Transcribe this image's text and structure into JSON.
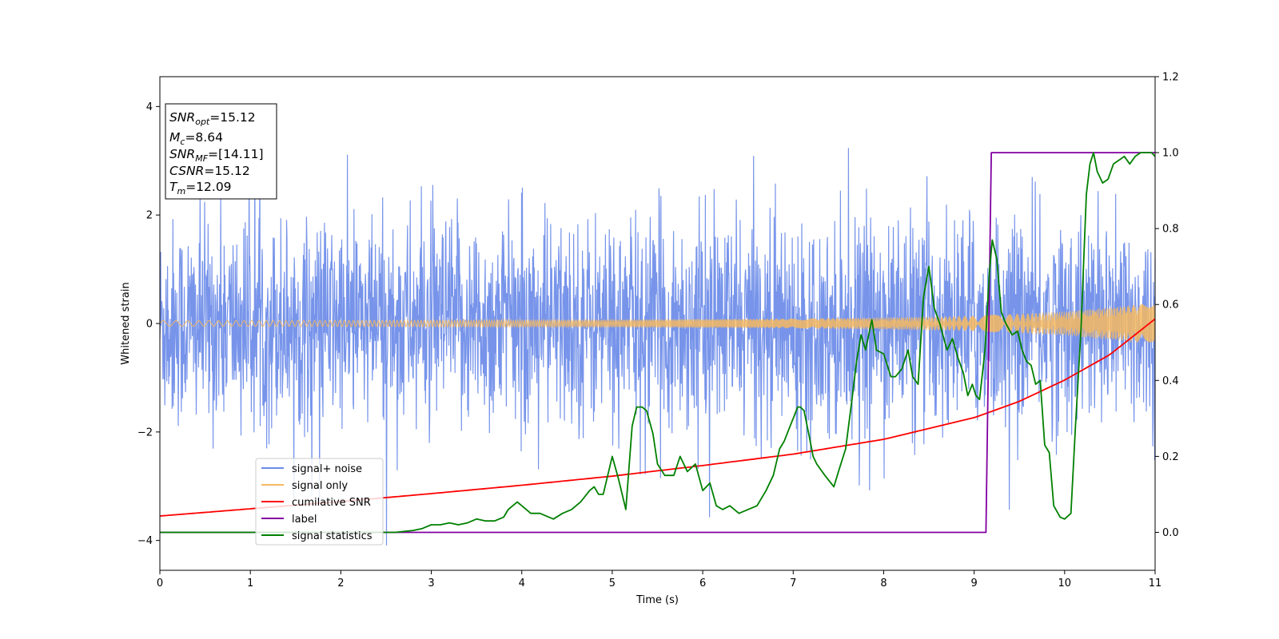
{
  "chart_data": {
    "type": "line",
    "xlabel": "Time (s)",
    "ylabel": "Whitened strain",
    "y2label": "",
    "xlim": [
      0,
      11
    ],
    "ylim": [
      -4.55,
      4.55
    ],
    "y2lim": [
      -0.1,
      1.2
    ],
    "xticks": [
      0,
      1,
      2,
      3,
      4,
      5,
      6,
      7,
      8,
      9,
      10,
      11
    ],
    "yticks": [
      -4,
      -2,
      0,
      2,
      4
    ],
    "y2ticks": [
      0.0,
      0.2,
      0.4,
      0.6,
      0.8,
      1.0,
      1.2
    ],
    "y2tick_labels": [
      "0.0",
      "0.2",
      "0.4",
      "0.6",
      "0.8",
      "1.0",
      "1.2"
    ],
    "grid": false,
    "legend_position": "lower-left",
    "colors": {
      "noise": "#6b8be8",
      "signal": "#f5b860",
      "snr": "#ff0000",
      "label": "#8000a0",
      "stats": "#008000"
    },
    "legend": [
      {
        "label": "signal+ noise",
        "color": "#6b8be8"
      },
      {
        "label": "signal only",
        "color": "#f5b860"
      },
      {
        "label": "cumilative SNR",
        "color": "#ff0000"
      },
      {
        "label": "label",
        "color": "#8000a0"
      },
      {
        "label": "signal statistics",
        "color": "#008000"
      }
    ],
    "info_box": [
      {
        "name": "SNR",
        "sub": "opt",
        "value": "=15.12"
      },
      {
        "name": "M",
        "sub": "c",
        "value": "=8.64"
      },
      {
        "name": "SNR",
        "sub": "MF",
        "value": "=[14.11]"
      },
      {
        "name": "CSNR",
        "sub": "",
        "value": "=15.12"
      },
      {
        "name": "T",
        "sub": "m",
        "value": "=12.09"
      }
    ],
    "series": [
      {
        "name": "signal+ noise",
        "axis": "left",
        "description_stats": {
          "std": 0.95,
          "max": 4.15,
          "min": -4.18
        }
      },
      {
        "name": "signal only",
        "axis": "left",
        "envelope": {
          "x": [
            0,
            3,
            5,
            7,
            8,
            9,
            10,
            11
          ],
          "amplitude": [
            0.05,
            0.06,
            0.07,
            0.09,
            0.11,
            0.14,
            0.22,
            0.38
          ]
        }
      },
      {
        "name": "cumilative SNR",
        "axis": "right",
        "x": [
          0,
          1,
          2,
          3,
          4,
          5,
          6,
          7,
          8,
          9,
          9.5,
          10,
          10.5,
          11
        ],
        "values": [
          0.043,
          0.062,
          0.081,
          0.102,
          0.124,
          0.148,
          0.176,
          0.206,
          0.245,
          0.302,
          0.345,
          0.401,
          0.468,
          0.562
        ]
      },
      {
        "name": "label",
        "axis": "right",
        "x": [
          0,
          9.13,
          9.19,
          11
        ],
        "values": [
          0,
          0,
          1,
          1
        ]
      },
      {
        "name": "signal statistics",
        "axis": "right",
        "x": [
          0,
          1,
          2,
          2.6,
          2.8,
          2.9,
          3.0,
          3.1,
          3.2,
          3.3,
          3.4,
          3.5,
          3.6,
          3.7,
          3.8,
          3.85,
          3.95,
          4.05,
          4.1,
          4.2,
          4.3,
          4.35,
          4.45,
          4.55,
          4.6,
          4.65,
          4.75,
          4.8,
          4.85,
          4.9,
          5.0,
          5.07,
          5.15,
          5.22,
          5.27,
          5.33,
          5.38,
          5.45,
          5.5,
          5.58,
          5.68,
          5.75,
          5.83,
          5.92,
          6.0,
          6.08,
          6.15,
          6.22,
          6.3,
          6.4,
          6.5,
          6.55,
          6.6,
          6.7,
          6.78,
          6.85,
          6.9,
          6.95,
          7.0,
          7.05,
          7.08,
          7.12,
          7.18,
          7.22,
          7.26,
          7.35,
          7.45,
          7.5,
          7.58,
          7.65,
          7.7,
          7.75,
          7.8,
          7.87,
          7.92,
          8.0,
          8.08,
          8.13,
          8.2,
          8.27,
          8.32,
          8.38,
          8.44,
          8.5,
          8.56,
          8.62,
          8.7,
          8.76,
          8.82,
          8.88,
          8.93,
          8.98,
          9.02,
          9.06,
          9.12,
          9.17,
          9.2,
          9.25,
          9.3,
          9.35,
          9.42,
          9.48,
          9.53,
          9.58,
          9.63,
          9.68,
          9.73,
          9.78,
          9.83,
          9.88,
          9.95,
          10.0,
          10.07,
          10.12,
          10.18,
          10.24,
          10.28,
          10.32,
          10.36,
          10.42,
          10.48,
          10.54,
          10.6,
          10.66,
          10.72,
          10.78,
          10.84,
          10.9,
          10.96,
          11.0
        ],
        "values": [
          0.0,
          0.0,
          0.0,
          0.0,
          0.005,
          0.01,
          0.02,
          0.02,
          0.025,
          0.02,
          0.025,
          0.035,
          0.03,
          0.03,
          0.04,
          0.06,
          0.08,
          0.06,
          0.05,
          0.05,
          0.04,
          0.035,
          0.05,
          0.06,
          0.07,
          0.08,
          0.11,
          0.12,
          0.1,
          0.1,
          0.2,
          0.14,
          0.06,
          0.28,
          0.33,
          0.33,
          0.32,
          0.26,
          0.18,
          0.15,
          0.15,
          0.2,
          0.16,
          0.18,
          0.11,
          0.13,
          0.07,
          0.06,
          0.07,
          0.05,
          0.06,
          0.065,
          0.07,
          0.11,
          0.15,
          0.22,
          0.24,
          0.27,
          0.3,
          0.33,
          0.33,
          0.32,
          0.25,
          0.2,
          0.18,
          0.15,
          0.12,
          0.16,
          0.22,
          0.35,
          0.45,
          0.52,
          0.48,
          0.56,
          0.48,
          0.47,
          0.41,
          0.41,
          0.43,
          0.48,
          0.41,
          0.39,
          0.62,
          0.7,
          0.59,
          0.55,
          0.48,
          0.51,
          0.46,
          0.42,
          0.36,
          0.39,
          0.36,
          0.35,
          0.48,
          0.69,
          0.77,
          0.72,
          0.58,
          0.55,
          0.52,
          0.53,
          0.48,
          0.45,
          0.44,
          0.39,
          0.4,
          0.23,
          0.21,
          0.07,
          0.04,
          0.035,
          0.05,
          0.28,
          0.53,
          0.89,
          0.97,
          1.0,
          0.95,
          0.92,
          0.93,
          0.97,
          0.98,
          0.99,
          0.97,
          0.99,
          1.0,
          1.0,
          1.0,
          0.99
        ]
      }
    ]
  }
}
